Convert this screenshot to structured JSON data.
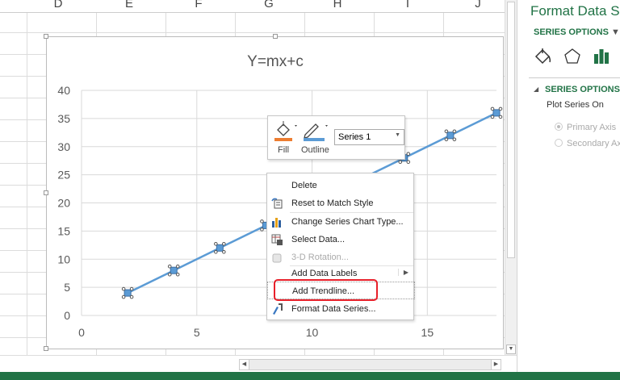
{
  "sheet": {
    "columns": [
      "D",
      "E",
      "F",
      "G",
      "H",
      "I",
      "J"
    ]
  },
  "chart_data": {
    "type": "line",
    "title": "Y=mx+c",
    "x": [
      2,
      4,
      6,
      8,
      10,
      12,
      14,
      16,
      18
    ],
    "series": [
      {
        "name": "Series 1",
        "values": [
          4,
          8,
          12,
          16,
          20,
          24,
          28,
          32,
          36
        ],
        "color": "#5b9bd5"
      }
    ],
    "xlim": [
      0,
      18
    ],
    "ylim": [
      0,
      40
    ],
    "xticks": [
      "0",
      "5",
      "10",
      "15"
    ],
    "yticks": [
      "0",
      "5",
      "10",
      "15",
      "20",
      "25",
      "30",
      "35",
      "40"
    ],
    "grid": true,
    "markers": true,
    "selected": true
  },
  "mini_toolbar": {
    "fill_label": "Fill",
    "outline_label": "Outline",
    "series_select": "Series 1",
    "fill_color": "#ed7d31",
    "outline_color": "#5b9bd5"
  },
  "context_menu": {
    "items": [
      {
        "label": "Delete",
        "icon": "none",
        "disabled": false
      },
      {
        "label": "Reset to Match Style",
        "icon": "reset-style-icon",
        "disabled": false
      },
      {
        "label": "Change Series Chart Type...",
        "icon": "bar-chart-icon",
        "disabled": false
      },
      {
        "label": "Select Data...",
        "icon": "select-data-icon",
        "disabled": false
      },
      {
        "label": "3-D Rotation...",
        "icon": "cube-icon",
        "disabled": true
      },
      {
        "label": "Add Data Labels",
        "icon": "none",
        "disabled": false,
        "submenu": true
      },
      {
        "label": "Add Trendline...",
        "icon": "none",
        "disabled": false,
        "highlighted": true
      },
      {
        "label": "Format Data Series...",
        "icon": "format-series-icon",
        "disabled": false
      }
    ]
  },
  "panel": {
    "title": "Format Data Series",
    "series_options_dropdown": "SERIES OPTIONS",
    "section": "SERIES OPTIONS",
    "plot_on": "Plot Series On",
    "primary": "Primary Axis",
    "secondary": "Secondary Axis",
    "primary_selected": true,
    "accent": "#217346"
  }
}
